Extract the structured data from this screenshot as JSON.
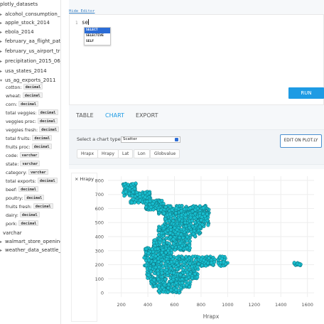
{
  "sidebar": {
    "items": [
      {
        "label": "plotly_datasets",
        "caret": ""
      },
      {
        "label": "alcohol_consumption_by_c",
        "caret": "▸"
      },
      {
        "label": "apple_stock_2014",
        "caret": "▸"
      },
      {
        "label": "ebola_2014",
        "caret": "▸"
      },
      {
        "label": "february_aa_flight_paths_2",
        "caret": "▸"
      },
      {
        "label": "february_us_airport_traffic",
        "caret": "▸"
      },
      {
        "label": "precipitation_2015_06_30",
        "caret": "▸"
      },
      {
        "label": "usa_states_2014",
        "caret": "▸"
      },
      {
        "label": "us_ag_exports_2011",
        "caret": "▾"
      }
    ],
    "columns": [
      {
        "name": "cotton:",
        "type": "decimal"
      },
      {
        "name": "wheat:",
        "type": "decimal"
      },
      {
        "name": "corn:",
        "type": "decimal"
      },
      {
        "name": "total veggies:",
        "type": "decimal"
      },
      {
        "name": "veggies proc:",
        "type": "decimal"
      },
      {
        "name": "veggies fresh:",
        "type": "decimal"
      },
      {
        "name": "total fruits:",
        "type": "decimal"
      },
      {
        "name": "fruits proc:",
        "type": "decimal"
      },
      {
        "name": "code:",
        "type": "varchar"
      },
      {
        "name": "state:",
        "type": "varchar"
      },
      {
        "name": "category:",
        "type": "varchar"
      },
      {
        "name": "total exports:",
        "type": "decimal"
      },
      {
        "name": "beef:",
        "type": "decimal"
      },
      {
        "name": "poultry:",
        "type": "decimal"
      },
      {
        "name": "fruits fresh:",
        "type": "decimal"
      },
      {
        "name": "dairy:",
        "type": "decimal"
      },
      {
        "name": "pork:",
        "type": "decimal"
      }
    ],
    "after_items": [
      {
        "label": "varchar",
        "caret": ""
      },
      {
        "label": "walmart_store_openings_1",
        "caret": "▸"
      },
      {
        "label": "weather_data_seattle_2016",
        "caret": "▸"
      }
    ]
  },
  "editor": {
    "link_label": "Hide Editor",
    "line_number": "1",
    "text": "se",
    "autocomplete": [
      "SELECT",
      "SELECTIVE",
      "SELF"
    ],
    "run_label": "RUN"
  },
  "tabs": [
    {
      "label": "TABLE",
      "active": false
    },
    {
      "label": "CHART",
      "active": true
    },
    {
      "label": "EXPORT",
      "active": false
    }
  ],
  "chart_controls": {
    "label": "Select a chart type",
    "selected": "Scatter",
    "edit_label": "EDIT ON PLOT.LY",
    "columns": [
      "Hrapx",
      "Hrapy",
      "Lat",
      "Lon",
      "Globvalue"
    ]
  },
  "colors": {
    "accent": "#1e9be4",
    "marker": "#17becf",
    "marker_edge": "#0f6f7a"
  },
  "chart_data": {
    "type": "scatter",
    "xlabel": "Hrapx",
    "ylabel": "",
    "xlim": [
      100,
      1650
    ],
    "ylim": [
      -30,
      830
    ],
    "xticks": [
      200,
      400,
      600,
      800,
      1000,
      1200,
      1400,
      1600
    ],
    "yticks": [
      0,
      100,
      200,
      300,
      400,
      500,
      600,
      700,
      800
    ],
    "legend": {
      "position": "left",
      "entries": [
        {
          "name": "Hrapy",
          "symbol": "×"
        }
      ]
    },
    "series": [
      {
        "name": "Hrapy",
        "clusters": [
          {
            "x_range": [
              215,
              310
            ],
            "y_range": [
              690,
              780
            ],
            "points": 90
          },
          {
            "x_range": [
              270,
              420
            ],
            "y_range": [
              640,
              720
            ],
            "points": 110
          },
          {
            "x_range": [
              380,
              520
            ],
            "y_range": [
              590,
              660
            ],
            "points": 110
          },
          {
            "x_range": [
              480,
              860
            ],
            "y_range": [
              560,
              620
            ],
            "points": 220
          },
          {
            "x_range": [
              520,
              860
            ],
            "y_range": [
              470,
              570
            ],
            "points": 220
          },
          {
            "x_range": [
              480,
              800
            ],
            "y_range": [
              400,
              480
            ],
            "points": 180
          },
          {
            "x_range": [
              440,
              720
            ],
            "y_range": [
              300,
              400
            ],
            "points": 180
          },
          {
            "x_range": [
              380,
              580
            ],
            "y_range": [
              240,
              320
            ],
            "points": 130
          },
          {
            "x_range": [
              370,
              1000
            ],
            "y_range": [
              190,
              260
            ],
            "points": 280
          },
          {
            "x_range": [
              390,
              780
            ],
            "y_range": [
              100,
              190
            ],
            "points": 200
          },
          {
            "x_range": [
              420,
              720
            ],
            "y_range": [
              40,
              100
            ],
            "points": 120
          },
          {
            "x_range": [
              480,
              650
            ],
            "y_range": [
              0,
              40
            ],
            "points": 60
          },
          {
            "x_range": [
              1490,
              1550
            ],
            "y_range": [
              195,
              215
            ],
            "points": 14
          }
        ]
      }
    ]
  }
}
